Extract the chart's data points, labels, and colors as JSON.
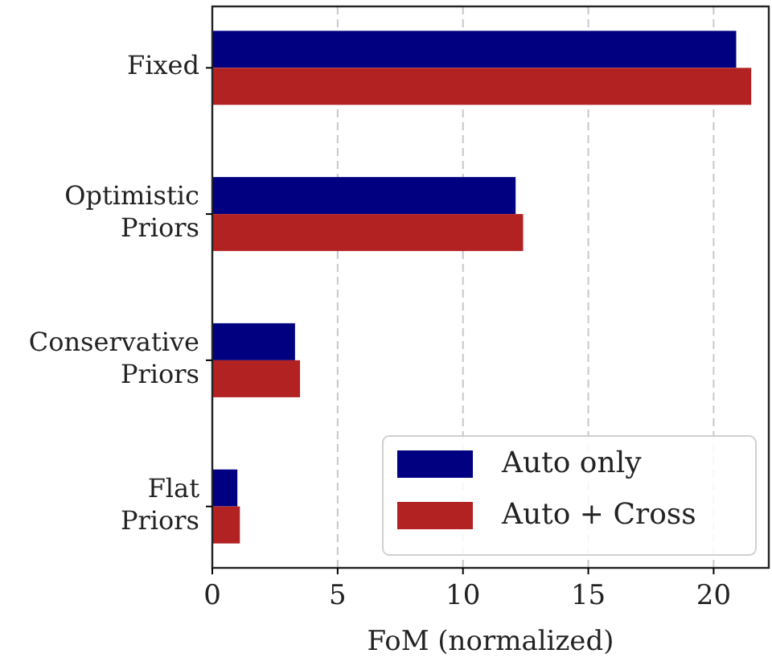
{
  "chart_data": {
    "type": "bar",
    "orientation": "horizontal",
    "xlabel": "FoM (normalized)",
    "categories": [
      "Fixed",
      "Optimistic Priors",
      "Conservative Priors",
      "Flat Priors"
    ],
    "series": [
      {
        "name": "Auto only",
        "color": "#000080",
        "values": [
          20.9,
          12.1,
          3.3,
          1.0
        ]
      },
      {
        "name": "Auto + Cross",
        "color": "#b22222",
        "values": [
          21.5,
          12.4,
          3.5,
          1.1
        ]
      }
    ],
    "xlim": [
      0,
      22.2
    ],
    "xticks": [
      0,
      5,
      10,
      15,
      20
    ],
    "grid": "x",
    "legend": "bottom right"
  }
}
